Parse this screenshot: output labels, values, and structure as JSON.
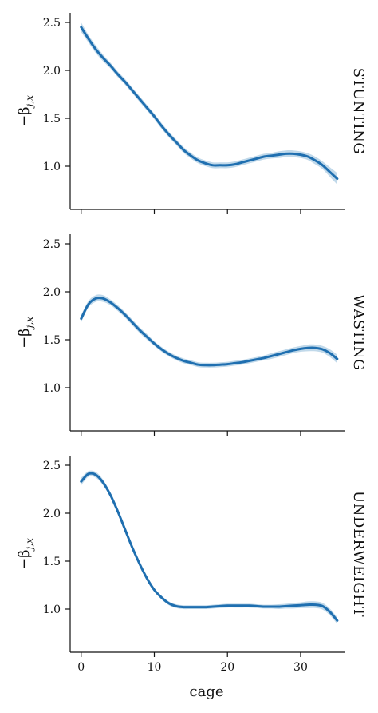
{
  "chart_data": {
    "type": "line",
    "xlabel": "cage",
    "ylabel": "−β_{j,x}",
    "ylabel_main": "−β",
    "ylabel_sub": "j,x",
    "xlim": [
      -1.5,
      36
    ],
    "ylim": [
      0.55,
      2.6
    ],
    "xticks": [
      0,
      10,
      20,
      30
    ],
    "yticks": [
      1.0,
      1.5,
      2.0,
      2.5
    ],
    "xtick_labels": [
      "0",
      "10",
      "20",
      "30"
    ],
    "ytick_labels": [
      "1.0",
      "1.5",
      "2.0",
      "2.5"
    ],
    "grid": false,
    "colors": {
      "line": "#1f6fb0",
      "band": "#1f77b4"
    },
    "panels": [
      {
        "facet": "STUNTING",
        "x": [
          0,
          1,
          2,
          3,
          4,
          5,
          6,
          7,
          8,
          9,
          10,
          11,
          12,
          13,
          14,
          15,
          16,
          17,
          18,
          19,
          20,
          21,
          22,
          23,
          24,
          25,
          26,
          27,
          28,
          29,
          30,
          31,
          32,
          33,
          34,
          35
        ],
        "y": [
          2.45,
          2.33,
          2.22,
          2.13,
          2.05,
          1.96,
          1.88,
          1.79,
          1.7,
          1.61,
          1.52,
          1.42,
          1.33,
          1.25,
          1.17,
          1.11,
          1.06,
          1.03,
          1.01,
          1.01,
          1.01,
          1.02,
          1.04,
          1.06,
          1.08,
          1.1,
          1.11,
          1.12,
          1.13,
          1.13,
          1.12,
          1.1,
          1.06,
          1.01,
          0.94,
          0.87
        ],
        "band_halfwidth": [
          0.05,
          0.04,
          0.04,
          0.035,
          0.03,
          0.03,
          0.03,
          0.03,
          0.03,
          0.03,
          0.03,
          0.03,
          0.03,
          0.03,
          0.03,
          0.03,
          0.03,
          0.03,
          0.03,
          0.03,
          0.03,
          0.03,
          0.03,
          0.03,
          0.03,
          0.03,
          0.03,
          0.035,
          0.035,
          0.035,
          0.035,
          0.035,
          0.04,
          0.04,
          0.05,
          0.06
        ]
      },
      {
        "facet": "WASTING",
        "x": [
          0,
          1,
          2,
          3,
          4,
          5,
          6,
          7,
          8,
          9,
          10,
          11,
          12,
          13,
          14,
          15,
          16,
          17,
          18,
          19,
          20,
          21,
          22,
          23,
          24,
          25,
          26,
          27,
          28,
          29,
          30,
          31,
          32,
          33,
          34,
          35
        ],
        "y": [
          1.72,
          1.87,
          1.93,
          1.93,
          1.89,
          1.83,
          1.76,
          1.68,
          1.6,
          1.53,
          1.46,
          1.4,
          1.35,
          1.31,
          1.28,
          1.26,
          1.24,
          1.235,
          1.235,
          1.24,
          1.245,
          1.255,
          1.265,
          1.28,
          1.295,
          1.31,
          1.33,
          1.35,
          1.37,
          1.39,
          1.405,
          1.415,
          1.415,
          1.4,
          1.36,
          1.3
        ],
        "band_halfwidth": [
          0.04,
          0.035,
          0.035,
          0.035,
          0.03,
          0.03,
          0.03,
          0.03,
          0.03,
          0.03,
          0.025,
          0.025,
          0.025,
          0.025,
          0.025,
          0.025,
          0.025,
          0.025,
          0.025,
          0.025,
          0.025,
          0.025,
          0.025,
          0.025,
          0.025,
          0.025,
          0.03,
          0.03,
          0.03,
          0.03,
          0.03,
          0.035,
          0.035,
          0.035,
          0.04,
          0.045
        ]
      },
      {
        "facet": "UNDERWEIGHT",
        "x": [
          0,
          1,
          2,
          3,
          4,
          5,
          6,
          7,
          8,
          9,
          10,
          11,
          12,
          13,
          14,
          15,
          16,
          17,
          18,
          19,
          20,
          21,
          22,
          23,
          24,
          25,
          26,
          27,
          28,
          29,
          30,
          31,
          32,
          33,
          34,
          35
        ],
        "y": [
          2.33,
          2.41,
          2.4,
          2.32,
          2.19,
          2.02,
          1.83,
          1.64,
          1.47,
          1.32,
          1.2,
          1.12,
          1.06,
          1.03,
          1.02,
          1.02,
          1.02,
          1.02,
          1.025,
          1.03,
          1.035,
          1.035,
          1.035,
          1.035,
          1.03,
          1.025,
          1.025,
          1.025,
          1.03,
          1.035,
          1.04,
          1.045,
          1.045,
          1.03,
          0.97,
          0.88
        ],
        "band_halfwidth": [
          0.04,
          0.03,
          0.03,
          0.03,
          0.025,
          0.025,
          0.025,
          0.025,
          0.025,
          0.02,
          0.02,
          0.02,
          0.02,
          0.02,
          0.02,
          0.02,
          0.02,
          0.02,
          0.02,
          0.02,
          0.02,
          0.02,
          0.02,
          0.02,
          0.02,
          0.02,
          0.02,
          0.025,
          0.025,
          0.03,
          0.03,
          0.035,
          0.035,
          0.035,
          0.035,
          0.035
        ]
      }
    ]
  }
}
